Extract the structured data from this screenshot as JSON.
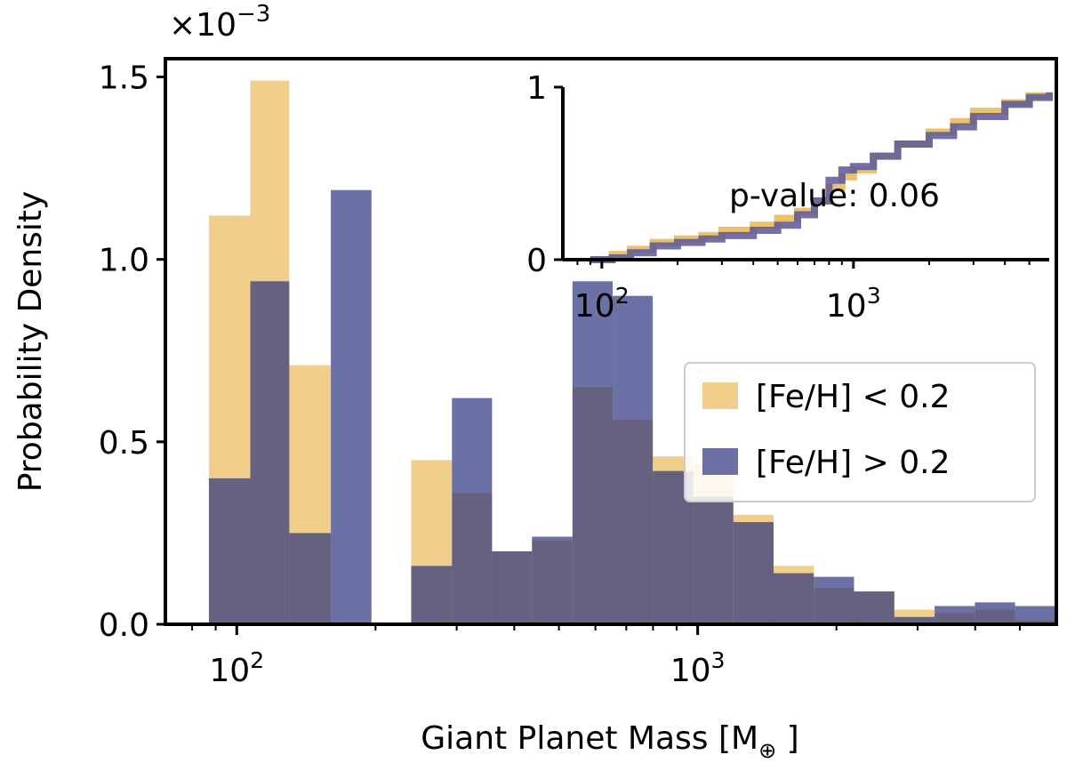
{
  "chart_data": [
    {
      "type": "histogram",
      "xscale": "log",
      "xlim": [
        70,
        6000
      ],
      "ylim": [
        0,
        1.55
      ],
      "yscale_multiplier_label": "×10",
      "yscale_multiplier_exponent": "−3",
      "xlabel": "Giant Planet Mass [M",
      "xlabel_subscript": "⊕",
      "xlabel_suffix": " ]",
      "ylabel": "Probability Density",
      "xticks": [
        {
          "value": 100,
          "base": "10",
          "exp": "2"
        },
        {
          "value": 1000,
          "base": "10",
          "exp": "3"
        }
      ],
      "yticks": [
        {
          "value": 0.0,
          "label": "0.0"
        },
        {
          "value": 0.5,
          "label": "0.5"
        },
        {
          "value": 1.0,
          "label": "1.0"
        },
        {
          "value": 1.5,
          "label": "1.5"
        }
      ],
      "bin_edges": [
        87,
        107,
        130,
        160,
        196,
        239,
        293,
        358,
        437,
        535,
        654,
        799,
        977,
        1195,
        1461,
        1786,
        2184,
        2671,
        3266,
        3994,
        4884,
        6000
      ],
      "series": [
        {
          "name": "[Fe/H] < 0.2",
          "color": "#e8b650",
          "opacity": 0.65,
          "values": [
            1.12,
            1.49,
            0.71,
            0.0,
            0.0,
            0.45,
            0.36,
            0.2,
            0.23,
            0.65,
            0.56,
            0.46,
            0.44,
            0.3,
            0.16,
            0.1,
            0.09,
            0.04,
            0.03,
            0.04,
            0.01
          ]
        },
        {
          "name": "[Fe/H] > 0.2",
          "color": "#252c7a",
          "opacity": 0.68,
          "values": [
            0.4,
            0.94,
            0.25,
            1.19,
            0.0,
            0.16,
            0.62,
            0.2,
            0.24,
            0.94,
            0.9,
            0.42,
            0.35,
            0.28,
            0.14,
            0.13,
            0.09,
            0.02,
            0.05,
            0.06,
            0.05
          ]
        }
      ],
      "legend": {
        "location": "right",
        "entries": [
          "[Fe/H] < 0.2",
          "[Fe/H] > 0.2"
        ]
      }
    },
    {
      "type": "line",
      "role": "inset",
      "xscale": "log",
      "xlim": [
        70,
        6000
      ],
      "ylim": [
        0,
        1
      ],
      "xticks": [
        {
          "value": 100,
          "base": "10",
          "exp": "2"
        },
        {
          "value": 1000,
          "base": "10",
          "exp": "3"
        }
      ],
      "yticks": [
        {
          "value": 0,
          "label": "0"
        },
        {
          "value": 1,
          "label": "1"
        }
      ],
      "annotation": "p-value: 0.06",
      "series": [
        {
          "name": "[Fe/H] < 0.2",
          "color": "#e8b650",
          "x": [
            90,
            110,
            130,
            160,
            200,
            250,
            300,
            400,
            500,
            600,
            700,
            800,
            900,
            1000,
            1200,
            1500,
            2000,
            2500,
            3000,
            4000,
            5000,
            6000
          ],
          "y": [
            0.0,
            0.03,
            0.06,
            0.1,
            0.12,
            0.14,
            0.17,
            0.2,
            0.24,
            0.28,
            0.34,
            0.42,
            0.48,
            0.52,
            0.6,
            0.67,
            0.74,
            0.8,
            0.86,
            0.91,
            0.95,
            0.97
          ]
        },
        {
          "name": "[Fe/H] > 0.2",
          "color": "#5a5899",
          "x": [
            90,
            110,
            130,
            160,
            200,
            250,
            300,
            400,
            500,
            600,
            700,
            800,
            900,
            1000,
            1200,
            1500,
            2000,
            2500,
            3000,
            4000,
            5000,
            6000
          ],
          "y": [
            0.0,
            0.01,
            0.04,
            0.08,
            0.1,
            0.12,
            0.14,
            0.17,
            0.2,
            0.26,
            0.34,
            0.46,
            0.52,
            0.54,
            0.6,
            0.67,
            0.72,
            0.77,
            0.83,
            0.9,
            0.94,
            0.97
          ]
        }
      ]
    }
  ]
}
